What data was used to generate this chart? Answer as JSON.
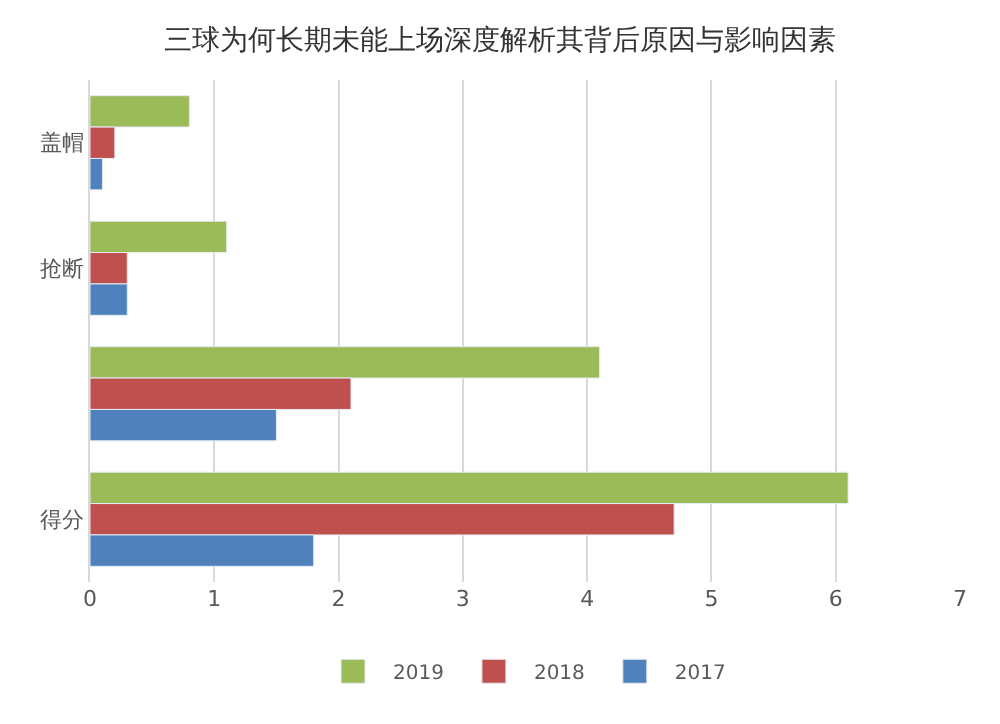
{
  "chart_data": {
    "type": "bar",
    "orientation": "horizontal",
    "title": "三球为何长期未能上场深度解析其背后原因与影响因素",
    "categories": [
      "盖帽",
      "抢断",
      null,
      "得分"
    ],
    "series": [
      {
        "name": "2019",
        "color": "#9bbb59",
        "values": [
          0.8,
          1.1,
          4.1,
          6.1
        ]
      },
      {
        "name": "2018",
        "color": "#c0504d",
        "values": [
          0.2,
          0.3,
          2.1,
          4.7
        ]
      },
      {
        "name": "2017",
        "color": "#4f81bd",
        "values": [
          0.1,
          0.3,
          1.5,
          1.8
        ]
      }
    ],
    "xlim": [
      0,
      7
    ],
    "xticks": [
      0,
      1,
      2,
      3,
      4,
      5,
      6,
      7
    ],
    "grid": "x",
    "legend": "bottom"
  }
}
